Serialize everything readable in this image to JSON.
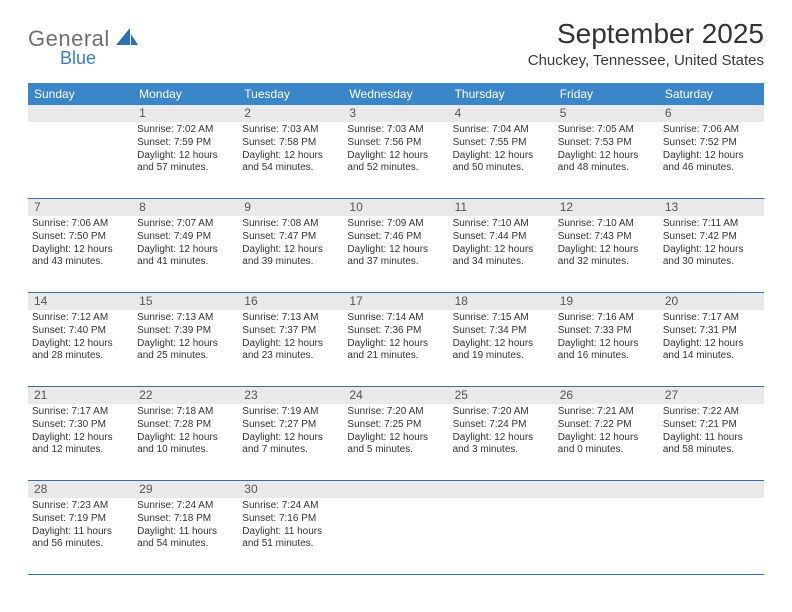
{
  "logo": {
    "main": "General",
    "sub": "Blue"
  },
  "title": "September 2025",
  "subtitle": "Chuckey, Tennessee, United States",
  "colors": {
    "header_bg": "#3a86c8",
    "header_text": "#ffffff",
    "daynum_bg": "#e9e9e9",
    "rule": "#3a6fa0",
    "logo_gray": "#6f6f6f",
    "logo_blue": "#3a7fbf"
  },
  "day_headers": [
    "Sunday",
    "Monday",
    "Tuesday",
    "Wednesday",
    "Thursday",
    "Friday",
    "Saturday"
  ],
  "weeks": [
    [
      null,
      {
        "n": "1",
        "sr": "7:02 AM",
        "ss": "7:59 PM",
        "dl": "12 hours and 57 minutes."
      },
      {
        "n": "2",
        "sr": "7:03 AM",
        "ss": "7:58 PM",
        "dl": "12 hours and 54 minutes."
      },
      {
        "n": "3",
        "sr": "7:03 AM",
        "ss": "7:56 PM",
        "dl": "12 hours and 52 minutes."
      },
      {
        "n": "4",
        "sr": "7:04 AM",
        "ss": "7:55 PM",
        "dl": "12 hours and 50 minutes."
      },
      {
        "n": "5",
        "sr": "7:05 AM",
        "ss": "7:53 PM",
        "dl": "12 hours and 48 minutes."
      },
      {
        "n": "6",
        "sr": "7:06 AM",
        "ss": "7:52 PM",
        "dl": "12 hours and 46 minutes."
      }
    ],
    [
      {
        "n": "7",
        "sr": "7:06 AM",
        "ss": "7:50 PM",
        "dl": "12 hours and 43 minutes."
      },
      {
        "n": "8",
        "sr": "7:07 AM",
        "ss": "7:49 PM",
        "dl": "12 hours and 41 minutes."
      },
      {
        "n": "9",
        "sr": "7:08 AM",
        "ss": "7:47 PM",
        "dl": "12 hours and 39 minutes."
      },
      {
        "n": "10",
        "sr": "7:09 AM",
        "ss": "7:46 PM",
        "dl": "12 hours and 37 minutes."
      },
      {
        "n": "11",
        "sr": "7:10 AM",
        "ss": "7:44 PM",
        "dl": "12 hours and 34 minutes."
      },
      {
        "n": "12",
        "sr": "7:10 AM",
        "ss": "7:43 PM",
        "dl": "12 hours and 32 minutes."
      },
      {
        "n": "13",
        "sr": "7:11 AM",
        "ss": "7:42 PM",
        "dl": "12 hours and 30 minutes."
      }
    ],
    [
      {
        "n": "14",
        "sr": "7:12 AM",
        "ss": "7:40 PM",
        "dl": "12 hours and 28 minutes."
      },
      {
        "n": "15",
        "sr": "7:13 AM",
        "ss": "7:39 PM",
        "dl": "12 hours and 25 minutes."
      },
      {
        "n": "16",
        "sr": "7:13 AM",
        "ss": "7:37 PM",
        "dl": "12 hours and 23 minutes."
      },
      {
        "n": "17",
        "sr": "7:14 AM",
        "ss": "7:36 PM",
        "dl": "12 hours and 21 minutes."
      },
      {
        "n": "18",
        "sr": "7:15 AM",
        "ss": "7:34 PM",
        "dl": "12 hours and 19 minutes."
      },
      {
        "n": "19",
        "sr": "7:16 AM",
        "ss": "7:33 PM",
        "dl": "12 hours and 16 minutes."
      },
      {
        "n": "20",
        "sr": "7:17 AM",
        "ss": "7:31 PM",
        "dl": "12 hours and 14 minutes."
      }
    ],
    [
      {
        "n": "21",
        "sr": "7:17 AM",
        "ss": "7:30 PM",
        "dl": "12 hours and 12 minutes."
      },
      {
        "n": "22",
        "sr": "7:18 AM",
        "ss": "7:28 PM",
        "dl": "12 hours and 10 minutes."
      },
      {
        "n": "23",
        "sr": "7:19 AM",
        "ss": "7:27 PM",
        "dl": "12 hours and 7 minutes."
      },
      {
        "n": "24",
        "sr": "7:20 AM",
        "ss": "7:25 PM",
        "dl": "12 hours and 5 minutes."
      },
      {
        "n": "25",
        "sr": "7:20 AM",
        "ss": "7:24 PM",
        "dl": "12 hours and 3 minutes."
      },
      {
        "n": "26",
        "sr": "7:21 AM",
        "ss": "7:22 PM",
        "dl": "12 hours and 0 minutes."
      },
      {
        "n": "27",
        "sr": "7:22 AM",
        "ss": "7:21 PM",
        "dl": "11 hours and 58 minutes."
      }
    ],
    [
      {
        "n": "28",
        "sr": "7:23 AM",
        "ss": "7:19 PM",
        "dl": "11 hours and 56 minutes."
      },
      {
        "n": "29",
        "sr": "7:24 AM",
        "ss": "7:18 PM",
        "dl": "11 hours and 54 minutes."
      },
      {
        "n": "30",
        "sr": "7:24 AM",
        "ss": "7:16 PM",
        "dl": "11 hours and 51 minutes."
      },
      null,
      null,
      null,
      null
    ]
  ],
  "labels": {
    "sunrise": "Sunrise:",
    "sunset": "Sunset:",
    "daylight": "Daylight:"
  }
}
